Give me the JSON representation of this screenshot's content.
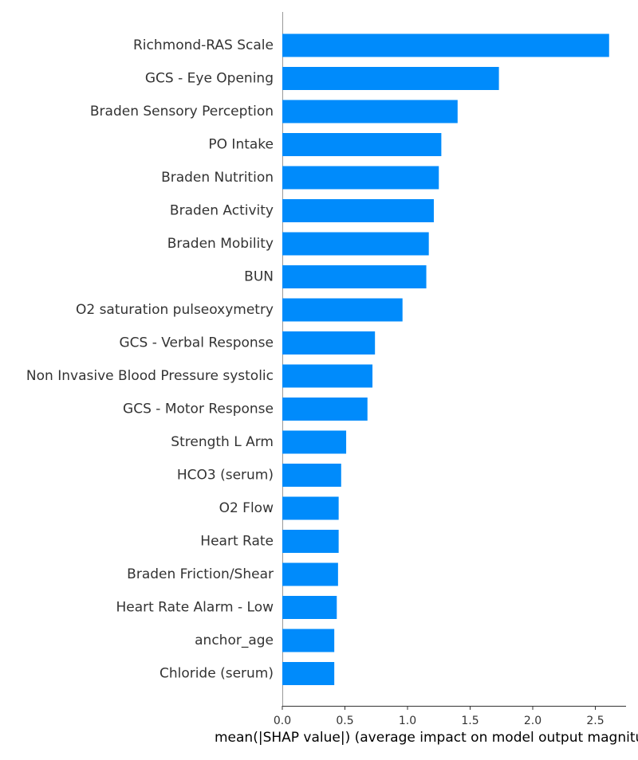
{
  "chart_data": {
    "type": "bar",
    "orientation": "horizontal",
    "categories": [
      "Richmond-RAS Scale",
      "GCS - Eye Opening",
      "Braden Sensory Perception",
      "PO Intake",
      "Braden Nutrition",
      "Braden Activity",
      "Braden Mobility",
      "BUN",
      "O2 saturation pulseoxymetry",
      "GCS - Verbal Response",
      "Non Invasive Blood Pressure systolic",
      "GCS - Motor Response",
      "Strength L Arm",
      "HCO3 (serum)",
      "O2 Flow",
      "Heart Rate",
      "Braden Friction/Shear",
      "Heart Rate Alarm - Low",
      "anchor_age",
      "Chloride (serum)"
    ],
    "values": [
      2.61,
      1.73,
      1.4,
      1.27,
      1.25,
      1.21,
      1.17,
      1.15,
      0.96,
      0.74,
      0.72,
      0.68,
      0.51,
      0.47,
      0.45,
      0.45,
      0.445,
      0.435,
      0.415,
      0.415
    ],
    "xlim": [
      0,
      2.75
    ],
    "xticks": [
      0.0,
      0.5,
      1.0,
      1.5,
      2.0,
      2.5
    ],
    "xtick_labels": [
      "0.0",
      "0.5",
      "1.0",
      "1.5",
      "2.0",
      "2.5"
    ],
    "xlabel": "mean(|SHAP value|) (average impact on model output magnitude)",
    "ylabel": "",
    "title": "",
    "grid": false,
    "bar_color": "#008bfb"
  }
}
